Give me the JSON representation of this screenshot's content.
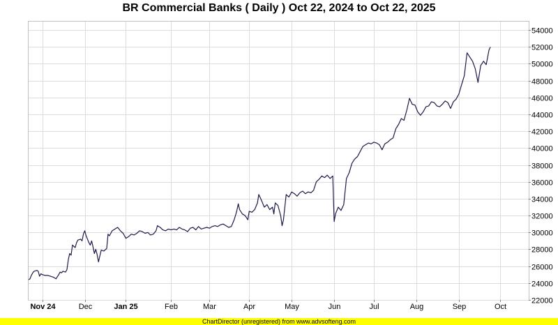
{
  "chart_data": {
    "type": "line",
    "title": "BR Commercial Banks ( Daily ) Oct 22, 2024 to Oct 22, 2025",
    "xlabel": "",
    "ylabel": "",
    "ylim": [
      22000,
      55000
    ],
    "y_ticks": [
      22000,
      24000,
      26000,
      28000,
      30000,
      32000,
      34000,
      36000,
      38000,
      40000,
      42000,
      44000,
      46000,
      48000,
      50000,
      52000,
      54000
    ],
    "x_range": [
      "2024-10-22",
      "2025-10-22"
    ],
    "x_ticks": [
      {
        "label": "Nov 24",
        "date": "2024-11-01",
        "bold": true
      },
      {
        "label": "Dec",
        "date": "2024-12-02",
        "bold": false
      },
      {
        "label": "Jan 25",
        "date": "2025-01-01",
        "bold": true
      },
      {
        "label": "Feb",
        "date": "2025-02-03",
        "bold": false
      },
      {
        "label": "Mar",
        "date": "2025-03-03",
        "bold": false
      },
      {
        "label": "Apr",
        "date": "2025-04-01",
        "bold": false
      },
      {
        "label": "May",
        "date": "2025-05-02",
        "bold": false
      },
      {
        "label": "Jun",
        "date": "2025-06-02",
        "bold": false
      },
      {
        "label": "Jul",
        "date": "2025-07-01",
        "bold": false
      },
      {
        "label": "Aug",
        "date": "2025-08-01",
        "bold": false
      },
      {
        "label": "Sep",
        "date": "2025-09-01",
        "bold": false
      },
      {
        "label": "Oct",
        "date": "2025-10-01",
        "bold": false
      }
    ],
    "grid": true,
    "line_color": "#1a1a4a",
    "series": [
      {
        "points": [
          [
            "2024-10-22",
            24400
          ],
          [
            "2024-10-23",
            24500
          ],
          [
            "2024-10-24",
            24900
          ],
          [
            "2024-10-25",
            25200
          ],
          [
            "2024-10-26",
            25400
          ],
          [
            "2024-10-28",
            25500
          ],
          [
            "2024-10-29",
            25400
          ],
          [
            "2024-10-30",
            24800
          ],
          [
            "2024-10-31",
            25100
          ],
          [
            "2024-11-01",
            25000
          ],
          [
            "2024-11-03",
            24900
          ],
          [
            "2024-11-05",
            24900
          ],
          [
            "2024-11-07",
            24800
          ],
          [
            "2024-11-09",
            24700
          ],
          [
            "2024-11-11",
            24500
          ],
          [
            "2024-11-13",
            25000
          ],
          [
            "2024-11-14",
            25300
          ],
          [
            "2024-11-15",
            25200
          ],
          [
            "2024-11-16",
            25400
          ],
          [
            "2024-11-18",
            25300
          ],
          [
            "2024-11-19",
            25600
          ],
          [
            "2024-11-20",
            26800
          ],
          [
            "2024-11-21",
            27500
          ],
          [
            "2024-11-22",
            27300
          ],
          [
            "2024-11-23",
            28500
          ],
          [
            "2024-11-25",
            28200
          ],
          [
            "2024-11-26",
            28800
          ],
          [
            "2024-11-27",
            29100
          ],
          [
            "2024-11-29",
            29200
          ],
          [
            "2024-11-30",
            29000
          ],
          [
            "2024-12-01",
            29800
          ],
          [
            "2024-12-02",
            30200
          ],
          [
            "2024-12-03",
            29600
          ],
          [
            "2024-12-05",
            28800
          ],
          [
            "2024-12-06",
            28500
          ],
          [
            "2024-12-07",
            29000
          ],
          [
            "2024-12-08",
            28300
          ],
          [
            "2024-12-09",
            27500
          ],
          [
            "2024-12-10",
            28000
          ],
          [
            "2024-12-11",
            27400
          ],
          [
            "2024-12-12",
            26500
          ],
          [
            "2024-12-13",
            27200
          ],
          [
            "2024-12-14",
            27900
          ],
          [
            "2024-12-16",
            27800
          ],
          [
            "2024-12-18",
            28100
          ],
          [
            "2024-12-19",
            29800
          ],
          [
            "2024-12-20",
            29600
          ],
          [
            "2024-12-22",
            30200
          ],
          [
            "2024-12-24",
            30400
          ],
          [
            "2024-12-26",
            30600
          ],
          [
            "2024-12-28",
            30200
          ],
          [
            "2024-12-30",
            29900
          ],
          [
            "2025-01-01",
            29300
          ],
          [
            "2025-01-03",
            29500
          ],
          [
            "2025-01-05",
            29800
          ],
          [
            "2025-01-07",
            29700
          ],
          [
            "2025-01-09",
            29900
          ],
          [
            "2025-01-11",
            30200
          ],
          [
            "2025-01-13",
            30100
          ],
          [
            "2025-01-15",
            29900
          ],
          [
            "2025-01-17",
            30000
          ],
          [
            "2025-01-19",
            29700
          ],
          [
            "2025-01-21",
            29800
          ],
          [
            "2025-01-23",
            30200
          ],
          [
            "2025-01-24",
            30800
          ],
          [
            "2025-01-26",
            30600
          ],
          [
            "2025-01-28",
            30300
          ],
          [
            "2025-01-30",
            30200
          ],
          [
            "2025-02-01",
            30400
          ],
          [
            "2025-02-03",
            30300
          ],
          [
            "2025-02-05",
            30400
          ],
          [
            "2025-02-07",
            30300
          ],
          [
            "2025-02-09",
            30600
          ],
          [
            "2025-02-11",
            30400
          ],
          [
            "2025-02-13",
            30300
          ],
          [
            "2025-02-15",
            30100
          ],
          [
            "2025-02-17",
            30500
          ],
          [
            "2025-02-19",
            30600
          ],
          [
            "2025-02-21",
            30300
          ],
          [
            "2025-02-23",
            30700
          ],
          [
            "2025-02-25",
            30400
          ],
          [
            "2025-02-27",
            30500
          ],
          [
            "2025-03-01",
            30600
          ],
          [
            "2025-03-03",
            30500
          ],
          [
            "2025-03-05",
            30700
          ],
          [
            "2025-03-07",
            30800
          ],
          [
            "2025-03-09",
            30700
          ],
          [
            "2025-03-11",
            30900
          ],
          [
            "2025-03-13",
            31000
          ],
          [
            "2025-03-15",
            30800
          ],
          [
            "2025-03-17",
            30600
          ],
          [
            "2025-03-19",
            30700
          ],
          [
            "2025-03-21",
            31500
          ],
          [
            "2025-03-22",
            32000
          ],
          [
            "2025-03-23",
            32600
          ],
          [
            "2025-03-24",
            33400
          ],
          [
            "2025-03-25",
            32700
          ],
          [
            "2025-03-27",
            32200
          ],
          [
            "2025-03-29",
            32000
          ],
          [
            "2025-03-31",
            31500
          ],
          [
            "2025-04-01",
            32500
          ],
          [
            "2025-04-03",
            32400
          ],
          [
            "2025-04-05",
            32700
          ],
          [
            "2025-04-07",
            33500
          ],
          [
            "2025-04-08",
            34500
          ],
          [
            "2025-04-10",
            33800
          ],
          [
            "2025-04-12",
            33000
          ],
          [
            "2025-04-14",
            33300
          ],
          [
            "2025-04-16",
            32700
          ],
          [
            "2025-04-18",
            33000
          ],
          [
            "2025-04-19",
            32200
          ],
          [
            "2025-04-20",
            33500
          ],
          [
            "2025-04-22",
            33200
          ],
          [
            "2025-04-24",
            32000
          ],
          [
            "2025-04-25",
            30800
          ],
          [
            "2025-04-26",
            31500
          ],
          [
            "2025-04-28",
            34500
          ],
          [
            "2025-04-30",
            34200
          ],
          [
            "2025-05-02",
            34800
          ],
          [
            "2025-05-04",
            34600
          ],
          [
            "2025-05-06",
            34300
          ],
          [
            "2025-05-08",
            34700
          ],
          [
            "2025-05-10",
            34900
          ],
          [
            "2025-05-12",
            34600
          ],
          [
            "2025-05-14",
            34800
          ],
          [
            "2025-05-16",
            34700
          ],
          [
            "2025-05-18",
            35000
          ],
          [
            "2025-05-20",
            36000
          ],
          [
            "2025-05-22",
            36300
          ],
          [
            "2025-05-24",
            36700
          ],
          [
            "2025-05-26",
            36500
          ],
          [
            "2025-05-28",
            36800
          ],
          [
            "2025-05-30",
            36400
          ],
          [
            "2025-06-01",
            36700
          ],
          [
            "2025-06-02",
            31300
          ],
          [
            "2025-06-03",
            32200
          ],
          [
            "2025-06-05",
            33000
          ],
          [
            "2025-06-07",
            32600
          ],
          [
            "2025-06-09",
            33300
          ],
          [
            "2025-06-11",
            36400
          ],
          [
            "2025-06-13",
            37100
          ],
          [
            "2025-06-15",
            38200
          ],
          [
            "2025-06-17",
            38700
          ],
          [
            "2025-06-19",
            39000
          ],
          [
            "2025-06-21",
            39600
          ],
          [
            "2025-06-23",
            40200
          ],
          [
            "2025-06-25",
            40400
          ],
          [
            "2025-06-27",
            40600
          ],
          [
            "2025-06-29",
            40500
          ],
          [
            "2025-07-01",
            40700
          ],
          [
            "2025-07-03",
            40600
          ],
          [
            "2025-07-05",
            40400
          ],
          [
            "2025-07-07",
            39800
          ],
          [
            "2025-07-09",
            40500
          ],
          [
            "2025-07-11",
            40700
          ],
          [
            "2025-07-13",
            41000
          ],
          [
            "2025-07-15",
            41200
          ],
          [
            "2025-07-17",
            42300
          ],
          [
            "2025-07-19",
            42800
          ],
          [
            "2025-07-21",
            43500
          ],
          [
            "2025-07-23",
            43300
          ],
          [
            "2025-07-25",
            44500
          ],
          [
            "2025-07-27",
            45900
          ],
          [
            "2025-07-29",
            45200
          ],
          [
            "2025-07-31",
            45100
          ],
          [
            "2025-08-02",
            44300
          ],
          [
            "2025-08-04",
            43900
          ],
          [
            "2025-08-06",
            44300
          ],
          [
            "2025-08-08",
            44900
          ],
          [
            "2025-08-10",
            45000
          ],
          [
            "2025-08-12",
            45500
          ],
          [
            "2025-08-14",
            45400
          ],
          [
            "2025-08-16",
            45000
          ],
          [
            "2025-08-18",
            44900
          ],
          [
            "2025-08-20",
            45200
          ],
          [
            "2025-08-22",
            45600
          ],
          [
            "2025-08-24",
            45400
          ],
          [
            "2025-08-26",
            44700
          ],
          [
            "2025-08-28",
            45500
          ],
          [
            "2025-08-30",
            45800
          ],
          [
            "2025-09-01",
            46400
          ],
          [
            "2025-09-03",
            47500
          ],
          [
            "2025-09-05",
            48600
          ],
          [
            "2025-09-07",
            51300
          ],
          [
            "2025-09-09",
            50800
          ],
          [
            "2025-09-11",
            50300
          ],
          [
            "2025-09-13",
            49400
          ],
          [
            "2025-09-15",
            47800
          ],
          [
            "2025-09-17",
            49800
          ],
          [
            "2025-09-19",
            50300
          ],
          [
            "2025-09-21",
            49900
          ],
          [
            "2025-09-23",
            51600
          ],
          [
            "2025-09-24",
            52000
          ]
        ]
      }
    ]
  },
  "footer": {
    "text": "ChartDirector (unregistered) from www.advsofteng.com"
  }
}
